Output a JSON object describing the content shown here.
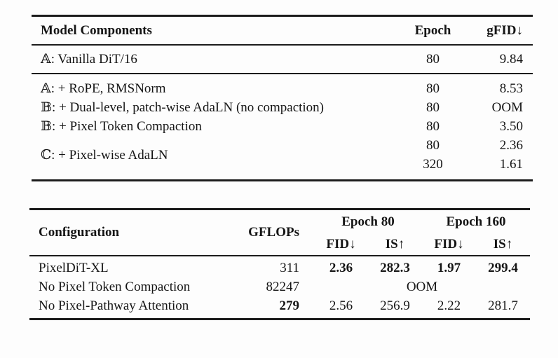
{
  "table1": {
    "headers": [
      "Model Components",
      "Epoch",
      "gFID↓"
    ],
    "baseline": {
      "label": "𝔸: Vanilla DiT/16",
      "epoch": "80",
      "gfid": "9.84"
    },
    "group": {
      "labels": [
        "𝔸: + RoPE, RMSNorm",
        "𝔹: + Dual-level, patch-wise AdaLN (no compaction)",
        "𝔹: + Pixel Token Compaction",
        "ℂ: + Pixel-wise AdaLN"
      ],
      "epochs": [
        "80",
        "80",
        "80",
        "80",
        "320"
      ],
      "gfids": [
        "8.53",
        "OOM",
        "3.50",
        "2.36",
        "1.61"
      ]
    }
  },
  "table2": {
    "headers": {
      "config": "Configuration",
      "gflops": "GFLOPs",
      "epoch80": "Epoch 80",
      "epoch160": "Epoch 160",
      "fid": "FID↓",
      "is": "IS↑"
    },
    "rows": [
      {
        "config": "PixelDiT-XL",
        "gflops": "311",
        "fid80": "2.36",
        "is80": "282.3",
        "fid160": "1.97",
        "is160": "299.4"
      },
      {
        "config": "No Pixel Token Compaction",
        "gflops": "82247",
        "merged": "OOM"
      },
      {
        "config": "No Pixel-Pathway Attention",
        "gflops": "279",
        "fid80": "2.56",
        "is80": "256.9",
        "fid160": "2.22",
        "is160": "281.7"
      }
    ]
  }
}
